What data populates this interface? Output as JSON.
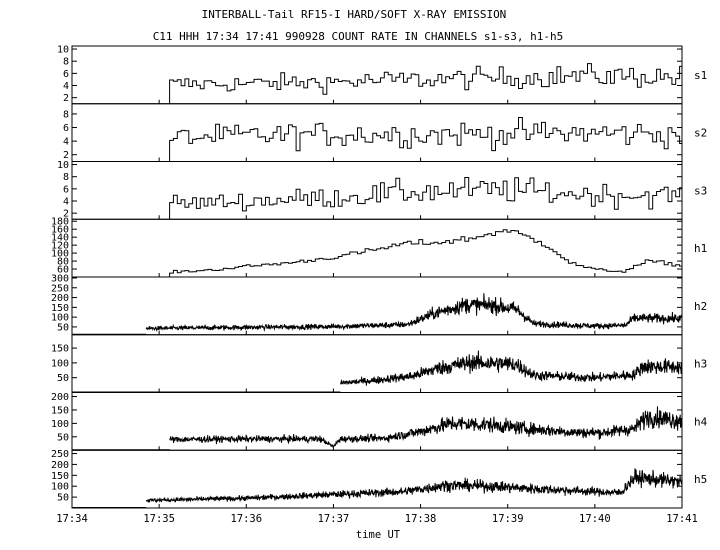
{
  "chart_data": {
    "type": "line",
    "title": "INTERBALL-Tail RF15-I HARD/SOFT X-RAY EMISSION",
    "subtitle": "C11 HHH 17:34 17:41 990928  COUNT RATE IN CHANNELS s1-s3, h1-h5",
    "xlabel": "time UT",
    "x_ticks": [
      "17:34",
      "17:35",
      "17:36",
      "17:37",
      "17:38",
      "17:39",
      "17:40",
      "17:41"
    ],
    "x_range_minutes": [
      0,
      7
    ],
    "grid": false,
    "panels": [
      {
        "name": "s1",
        "step": true,
        "noise": 0.34,
        "yticks": [
          2,
          4,
          6,
          8,
          10
        ],
        "ylim": [
          1,
          10.5
        ],
        "start": 1.12,
        "end": 7.0,
        "envelope": [
          [
            1.12,
            4.2
          ],
          [
            2.0,
            4.3
          ],
          [
            3.0,
            4.6
          ],
          [
            4.0,
            5.0
          ],
          [
            5.0,
            5.3
          ],
          [
            6.0,
            5.6
          ],
          [
            7.0,
            5.4
          ]
        ]
      },
      {
        "name": "s2",
        "step": true,
        "noise": 0.38,
        "yticks": [
          2,
          4,
          6,
          8
        ],
        "ylim": [
          1,
          9.5
        ],
        "start": 1.12,
        "end": 7.0,
        "envelope": [
          [
            1.12,
            4.5
          ],
          [
            2.0,
            4.8
          ],
          [
            3.0,
            5.0
          ],
          [
            4.0,
            5.0
          ],
          [
            5.0,
            5.1
          ],
          [
            6.0,
            5.2
          ],
          [
            7.0,
            5.0
          ]
        ]
      },
      {
        "name": "s3",
        "step": true,
        "noise": 0.38,
        "yticks": [
          2,
          4,
          6,
          8,
          10
        ],
        "ylim": [
          1,
          10.5
        ],
        "start": 1.12,
        "end": 7.0,
        "envelope": [
          [
            1.12,
            3.5
          ],
          [
            2.0,
            4.0
          ],
          [
            3.0,
            4.6
          ],
          [
            4.0,
            5.6
          ],
          [
            5.0,
            5.8
          ],
          [
            6.0,
            5.0
          ],
          [
            7.0,
            4.9
          ]
        ]
      },
      {
        "name": "h1",
        "step": true,
        "noise": 0.06,
        "yticks": [
          60,
          80,
          100,
          120,
          140,
          160,
          180
        ],
        "ylim": [
          40,
          185
        ],
        "start": 1.12,
        "end": 7.0,
        "envelope": [
          [
            1.12,
            52
          ],
          [
            1.6,
            58
          ],
          [
            2.0,
            67
          ],
          [
            2.5,
            76
          ],
          [
            3.0,
            90
          ],
          [
            3.5,
            110
          ],
          [
            3.8,
            124
          ],
          [
            4.2,
            127
          ],
          [
            4.6,
            138
          ],
          [
            4.9,
            156
          ],
          [
            5.1,
            150
          ],
          [
            5.45,
            118
          ],
          [
            5.7,
            75
          ],
          [
            6.0,
            58
          ],
          [
            6.3,
            54
          ],
          [
            6.6,
            80
          ],
          [
            6.8,
            75
          ],
          [
            7.0,
            67
          ]
        ]
      },
      {
        "name": "h2",
        "step": false,
        "noise": 0.26,
        "yticks": [
          50,
          100,
          150,
          200,
          250,
          300
        ],
        "ylim": [
          10,
          305
        ],
        "start": 0.85,
        "end": 7.0,
        "envelope": [
          [
            0.85,
            42
          ],
          [
            2.0,
            48
          ],
          [
            3.0,
            52
          ],
          [
            3.85,
            62
          ],
          [
            4.15,
            118
          ],
          [
            4.5,
            162
          ],
          [
            4.8,
            162
          ],
          [
            5.1,
            140
          ],
          [
            5.3,
            66
          ],
          [
            6.0,
            55
          ],
          [
            6.35,
            58
          ],
          [
            6.45,
            95
          ],
          [
            7.0,
            92
          ]
        ]
      },
      {
        "name": "h3",
        "step": false,
        "noise": 0.3,
        "yticks": [
          50,
          100,
          150
        ],
        "ylim": [
          0,
          195
        ],
        "start": 3.08,
        "end": 7.0,
        "envelope": [
          [
            3.08,
            32
          ],
          [
            3.5,
            42
          ],
          [
            3.9,
            55
          ],
          [
            4.2,
            82
          ],
          [
            4.6,
            102
          ],
          [
            5.1,
            95
          ],
          [
            5.3,
            58
          ],
          [
            6.0,
            50
          ],
          [
            6.45,
            60
          ],
          [
            6.55,
            88
          ],
          [
            7.0,
            86
          ]
        ]
      },
      {
        "name": "h4",
        "step": false,
        "noise": 0.3,
        "yticks": [
          50,
          100,
          150,
          200
        ],
        "ylim": [
          0,
          215
        ],
        "start": 1.12,
        "end": 7.0,
        "envelope": [
          [
            1.12,
            40
          ],
          [
            2.0,
            42
          ],
          [
            2.85,
            42
          ],
          [
            3.0,
            14
          ],
          [
            3.08,
            42
          ],
          [
            3.6,
            45
          ],
          [
            4.0,
            70
          ],
          [
            4.35,
            100
          ],
          [
            4.8,
            95
          ],
          [
            5.3,
            78
          ],
          [
            5.8,
            66
          ],
          [
            6.1,
            66
          ],
          [
            6.45,
            80
          ],
          [
            6.6,
            125
          ],
          [
            7.0,
            110
          ]
        ]
      },
      {
        "name": "h5",
        "step": false,
        "noise": 0.26,
        "yticks": [
          50,
          100,
          150,
          200,
          250
        ],
        "ylim": [
          0,
          265
        ],
        "start": 0.85,
        "end": 7.0,
        "envelope": [
          [
            0.85,
            35
          ],
          [
            2.0,
            45
          ],
          [
            3.0,
            62
          ],
          [
            3.8,
            75
          ],
          [
            4.3,
            105
          ],
          [
            4.8,
            100
          ],
          [
            5.3,
            88
          ],
          [
            6.0,
            75
          ],
          [
            6.3,
            70
          ],
          [
            6.45,
            140
          ],
          [
            7.0,
            120
          ]
        ]
      }
    ]
  }
}
